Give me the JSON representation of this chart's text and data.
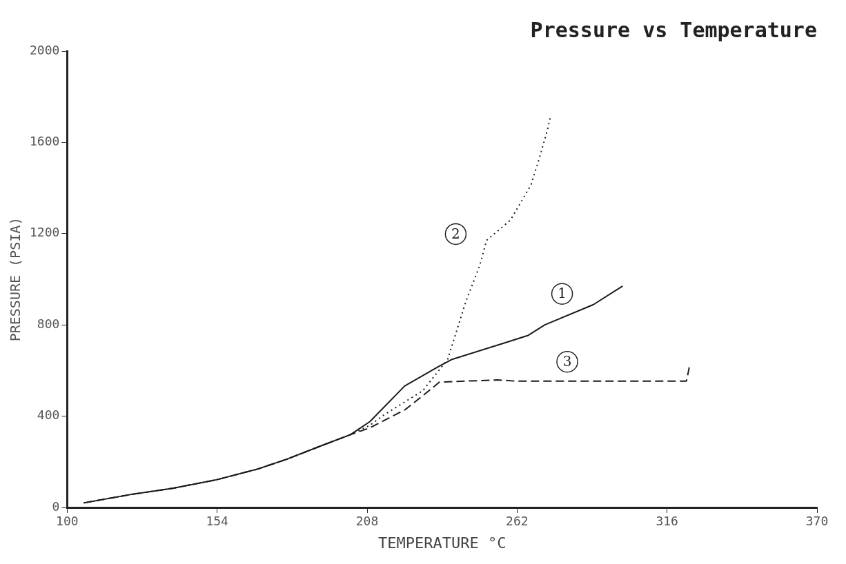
{
  "chart_data": {
    "type": "line",
    "title": "Pressure vs Temperature",
    "xlabel": "TEMPERATURE °C",
    "ylabel": "PRESSURE (PSIA)",
    "xlim": [
      100,
      370
    ],
    "xticks": [
      100,
      154,
      208,
      262,
      316,
      370
    ],
    "ylim": [
      0,
      2000
    ],
    "yticks": [
      0,
      400,
      800,
      1200,
      1600,
      2000
    ],
    "grid": false,
    "legend": false,
    "marker": "none",
    "series": [
      {
        "color": "#1a1a1a",
        "line_style": "solid",
        "x": [
          106,
          123,
          138,
          154,
          168.5,
          179,
          191,
          202,
          209,
          221.5,
          233.5,
          238.6,
          257,
          266,
          272,
          289.5,
          300
        ],
        "values": [
          20,
          57,
          84,
          122,
          168,
          211,
          268,
          319,
          376,
          532,
          616,
          649,
          719,
          754,
          800,
          889,
          970
        ]
      },
      {
        "color": "#1a1a1a",
        "line_style": "dotted",
        "x": [
          106,
          123,
          138,
          154,
          168.5,
          179,
          191,
          202,
          209,
          214,
          228,
          237,
          243.5,
          248.6,
          251,
          259.6,
          267,
          270,
          273,
          274
        ],
        "values": [
          20,
          57,
          84,
          122,
          168,
          211,
          268,
          319,
          360,
          405,
          511,
          649,
          900,
          1062,
          1170,
          1259,
          1413,
          1530,
          1657,
          1714
        ]
      },
      {
        "color": "#1a1a1a",
        "line_style": "dashed",
        "x": [
          106,
          123,
          138,
          154,
          168.5,
          179,
          191,
          202,
          209,
          221.5,
          228,
          234,
          255,
          261,
          323,
          324
        ],
        "values": [
          20,
          57,
          84,
          122,
          168,
          211,
          268,
          319,
          349,
          427,
          489,
          549,
          559,
          554,
          554,
          614
        ]
      }
    ],
    "annotations": [
      {
        "text": "1",
        "x": 272,
        "y": 800
      },
      {
        "text": "2",
        "x": 248.6,
        "y": 1062
      },
      {
        "text": "3",
        "x": 290,
        "y": 554
      }
    ]
  }
}
